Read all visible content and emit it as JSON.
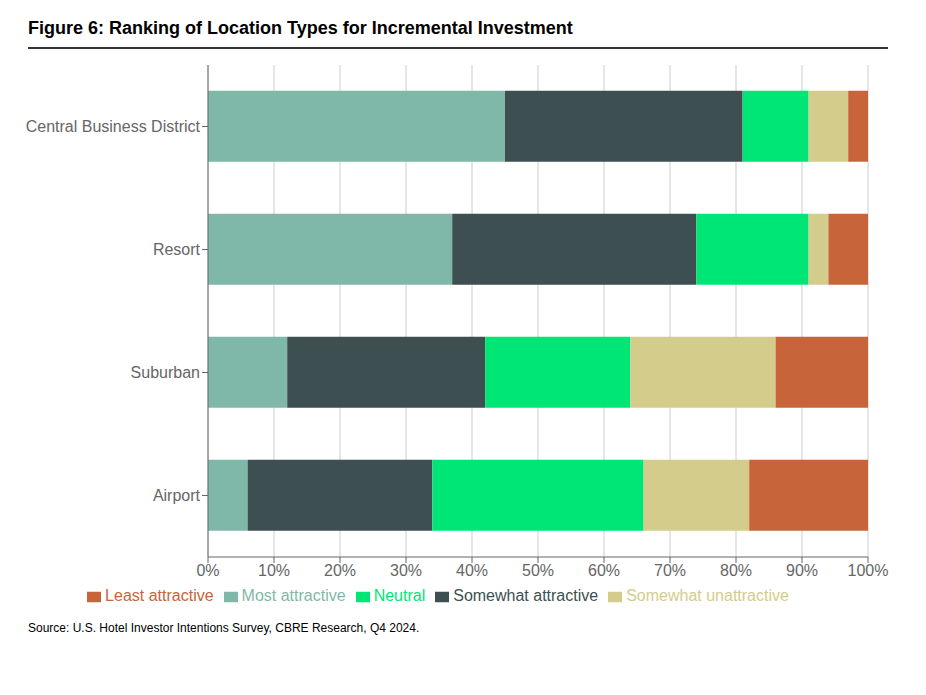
{
  "chart_data": {
    "type": "bar",
    "orientation": "horizontal",
    "stacked": true,
    "title": "Figure 6: Ranking of Location Types for Incremental Investment",
    "annotations": [
      "Source: U.S. Hotel Investor Intentions Survey, CBRE Research, Q4 2024."
    ],
    "categories": [
      "Airport",
      "Suburban",
      "Resort",
      "Central Business District"
    ],
    "series": [
      {
        "name": "Most attractive",
        "color": "#7fb8a8",
        "values": [
          6,
          12,
          37,
          45
        ]
      },
      {
        "name": "Somewhat attractive",
        "color": "#3d4f51",
        "values": [
          28,
          30,
          37,
          36
        ]
      },
      {
        "name": "Neutral",
        "color": "#00e676",
        "values": [
          32,
          22,
          17,
          10
        ]
      },
      {
        "name": "Somewhat unattractive",
        "color": "#d4cc8a",
        "values": [
          16,
          22,
          3,
          6
        ]
      },
      {
        "name": "Least attractive",
        "color": "#c8643a",
        "values": [
          18,
          14,
          6,
          3
        ]
      }
    ],
    "xlim": [
      0,
      100
    ],
    "xticks": [
      {
        "value": 0,
        "label": "0%"
      },
      {
        "value": 10,
        "label": "10%"
      },
      {
        "value": 20,
        "label": "20%"
      },
      {
        "value": 30,
        "label": "30%"
      },
      {
        "value": 40,
        "label": "40%"
      },
      {
        "value": 50,
        "label": "50%"
      },
      {
        "value": 60,
        "label": "60%"
      },
      {
        "value": 70,
        "label": "70%"
      },
      {
        "value": 80,
        "label": "80%"
      },
      {
        "value": 90,
        "label": "90%"
      },
      {
        "value": 100,
        "label": "100%"
      }
    ],
    "grid": "x",
    "legend": "bottom"
  }
}
